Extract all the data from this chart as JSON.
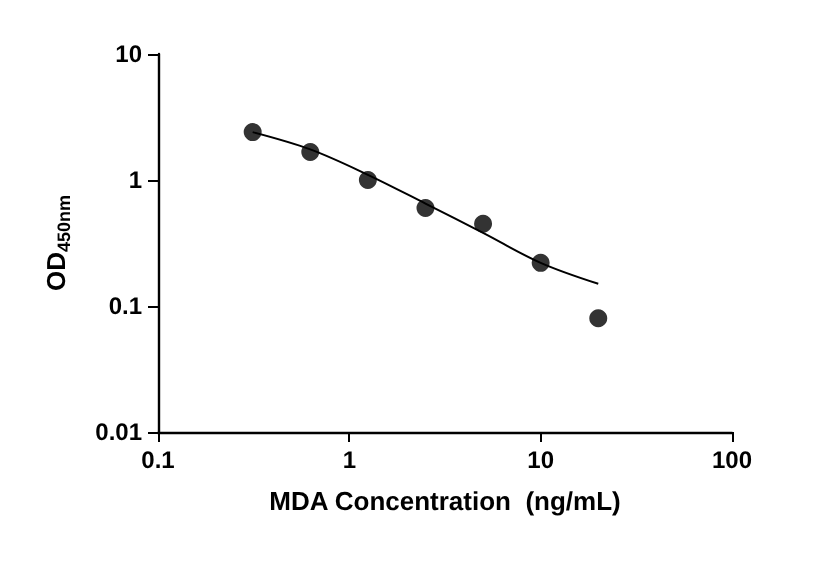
{
  "chart_data": {
    "type": "scatter",
    "xlabel": "MDA Concentration  (ng/mL)",
    "ylabel": "OD$_{450nm}$",
    "log": "xy",
    "xlim": [
      0.1,
      100
    ],
    "ylim": [
      0.01,
      10
    ],
    "xticks": [
      0.1,
      1,
      10,
      100
    ],
    "yticks": [
      0.01,
      0.1,
      1,
      10
    ],
    "grid": false,
    "marker": "circle",
    "series": [
      {
        "color": "#000000",
        "x": [
          0.3125,
          0.625,
          1.25,
          2.5,
          5,
          10,
          20
        ],
        "values": [
          2.4,
          1.67,
          1.0,
          0.6,
          0.45,
          0.22,
          0.08
        ]
      },
      {
        "type": "line",
        "color": "#000000",
        "marker": "none",
        "x": [
          0.3125,
          0.625,
          1.25,
          2.5,
          5,
          10,
          20
        ],
        "values": [
          2.4,
          1.75,
          1.1,
          0.65,
          0.38,
          0.22,
          0.15
        ]
      }
    ]
  }
}
